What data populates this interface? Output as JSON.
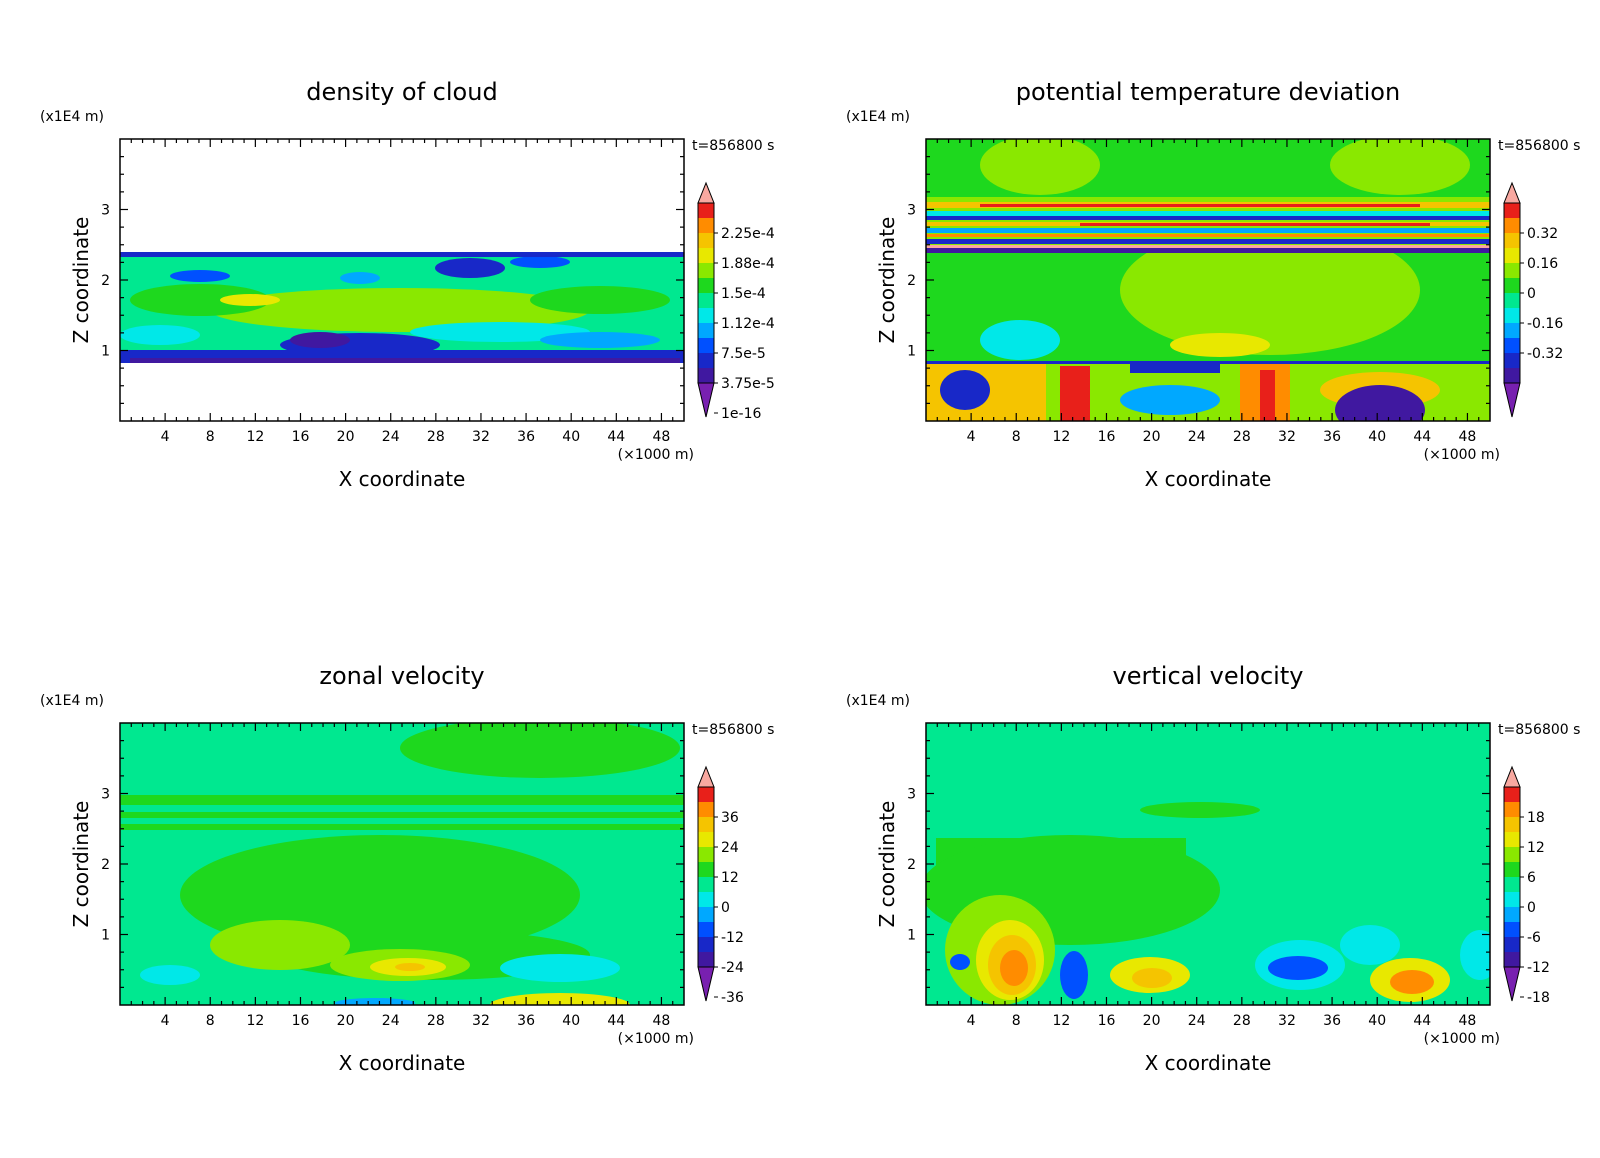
{
  "chart_data": [
    {
      "type": "heatmap",
      "title": "density of cloud",
      "xlabel": "X coordinate",
      "ylabel": "Z coordinate",
      "x_unit": "(×1000 m)",
      "y_unit": "(x1E4 m)",
      "time_label": "t=856800 s",
      "xlim": [
        0,
        50
      ],
      "ylim": [
        0,
        4
      ],
      "x_ticks": [
        "4",
        "8",
        "12",
        "16",
        "20",
        "24",
        "28",
        "32",
        "36",
        "40",
        "44",
        "48"
      ],
      "y_ticks": [
        "1",
        "2",
        "3"
      ],
      "colorbar_labels": [
        "2.25e-4",
        "1.88e-4",
        "1.5e-4",
        "1.12e-4",
        "7.5e-5",
        "3.75e-5",
        "1e-16"
      ],
      "colorbar_colors": [
        "#f8a8a0",
        "#e8201a",
        "#ff8c00",
        "#f5c400",
        "#e8e800",
        "#8ae800",
        "#1ed81e",
        "#00e890",
        "#00e8e8",
        "#00a8ff",
        "#0050ff",
        "#1828c8",
        "#4018a0",
        "#7820b0"
      ]
    },
    {
      "type": "heatmap",
      "title": "potential temperature deviation",
      "xlabel": "X coordinate",
      "ylabel": "Z coordinate",
      "x_unit": "(×1000 m)",
      "y_unit": "(x1E4 m)",
      "time_label": "t=856800 s",
      "xlim": [
        0,
        50
      ],
      "ylim": [
        0,
        4
      ],
      "x_ticks": [
        "4",
        "8",
        "12",
        "16",
        "20",
        "24",
        "28",
        "32",
        "36",
        "40",
        "44",
        "48"
      ],
      "y_ticks": [
        "1",
        "2",
        "3"
      ],
      "colorbar_labels": [
        "0.32",
        "0.16",
        "0",
        "-0.16",
        "-0.32"
      ],
      "colorbar_colors": [
        "#f8a8a0",
        "#e8201a",
        "#ff8c00",
        "#f5c400",
        "#e8e800",
        "#8ae800",
        "#1ed81e",
        "#00e890",
        "#00e8e8",
        "#00a8ff",
        "#0050ff",
        "#1828c8",
        "#4018a0",
        "#7820b0"
      ]
    },
    {
      "type": "heatmap",
      "title": "zonal velocity",
      "xlabel": "X coordinate",
      "ylabel": "Z coordinate",
      "x_unit": "(×1000 m)",
      "y_unit": "(x1E4 m)",
      "time_label": "t=856800 s",
      "xlim": [
        0,
        50
      ],
      "ylim": [
        0,
        4
      ],
      "x_ticks": [
        "4",
        "8",
        "12",
        "16",
        "20",
        "24",
        "28",
        "32",
        "36",
        "40",
        "44",
        "48"
      ],
      "y_ticks": [
        "1",
        "2",
        "3"
      ],
      "colorbar_labels": [
        "36",
        "24",
        "12",
        "0",
        "-12",
        "-24",
        "-36"
      ],
      "colorbar_colors": [
        "#f8a8a0",
        "#e8201a",
        "#ff8c00",
        "#f5c400",
        "#e8e800",
        "#8ae800",
        "#1ed81e",
        "#00e890",
        "#00e8e8",
        "#00a8ff",
        "#0050ff",
        "#1828c8",
        "#4018a0",
        "#7820b0"
      ]
    },
    {
      "type": "heatmap",
      "title": "vertical velocity",
      "xlabel": "X coordinate",
      "ylabel": "Z coordinate",
      "x_unit": "(×1000 m)",
      "y_unit": "(x1E4 m)",
      "time_label": "t=856800 s",
      "xlim": [
        0,
        50
      ],
      "ylim": [
        0,
        4
      ],
      "x_ticks": [
        "4",
        "8",
        "12",
        "16",
        "20",
        "24",
        "28",
        "32",
        "36",
        "40",
        "44",
        "48"
      ],
      "y_ticks": [
        "1",
        "2",
        "3"
      ],
      "colorbar_labels": [
        "18",
        "12",
        "6",
        "0",
        "-6",
        "-12",
        "-18"
      ],
      "colorbar_colors": [
        "#f8a8a0",
        "#e8201a",
        "#ff8c00",
        "#f5c400",
        "#e8e800",
        "#8ae800",
        "#1ed81e",
        "#00e890",
        "#00e8e8",
        "#00a8ff",
        "#0050ff",
        "#1828c8",
        "#4018a0",
        "#7820b0"
      ]
    }
  ]
}
